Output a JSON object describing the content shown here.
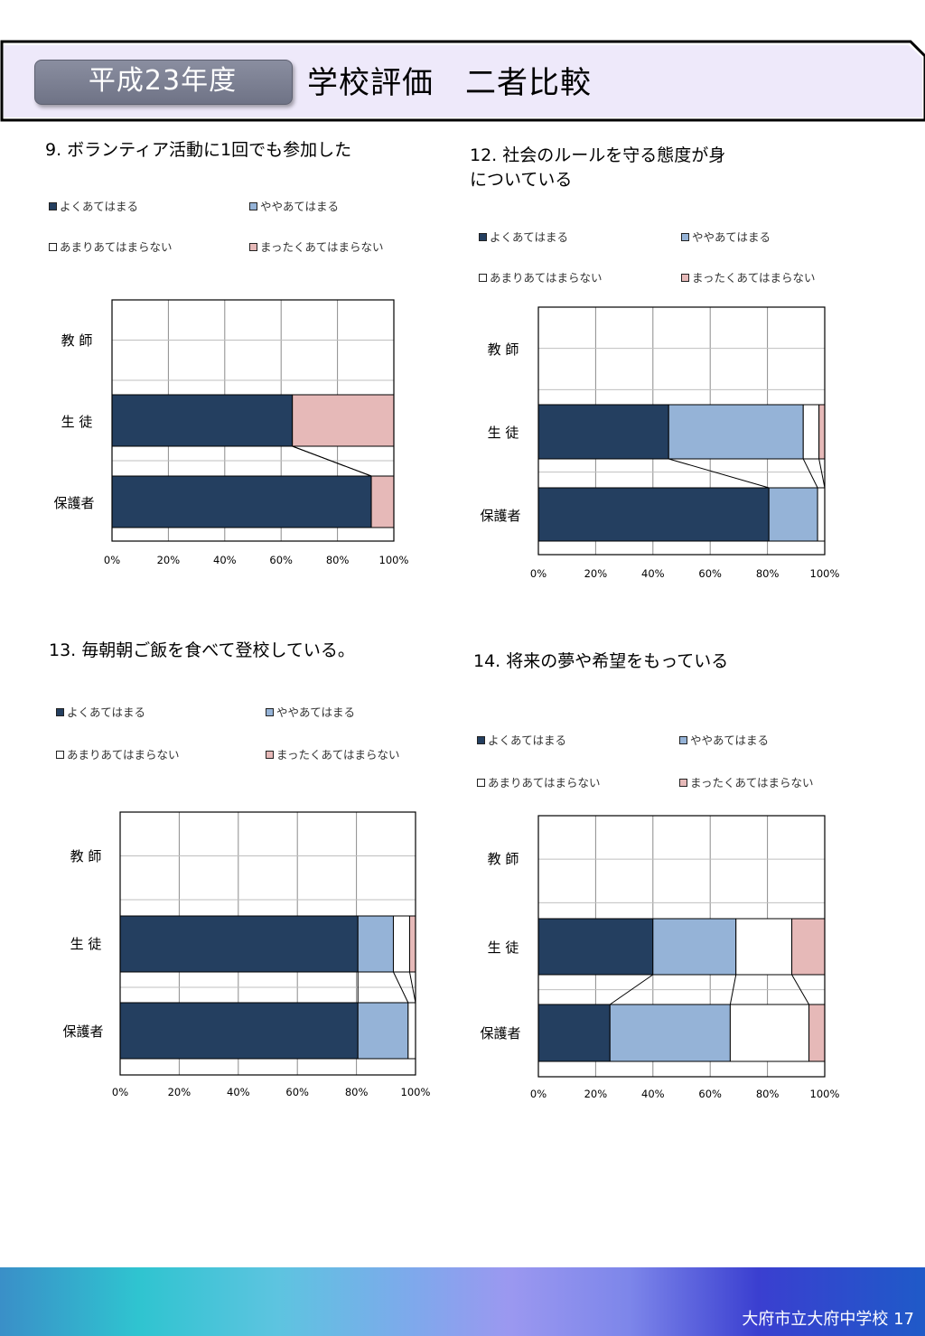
{
  "header": {
    "year": "平成23年度",
    "title": "学校評価　二者比較"
  },
  "footer": {
    "school": "大府市立大府中学校 17"
  },
  "categories": [
    "教 師",
    "生 徒",
    "保護者"
  ],
  "legend_labels": [
    "よくあてはまる",
    "ややあてはまる",
    "あまりあてはまらない",
    "まったくあてはまらない"
  ],
  "colors": {
    "navy": "#243F60",
    "lightblue": "#95B3D7",
    "white": "#FFFFFF",
    "pink": "#E6B9B8"
  },
  "chart_data": [
    {
      "type": "bar",
      "title": "9. ボランティア活動に1回でも参加した",
      "categories": [
        "教 師",
        "生 徒",
        "保護者"
      ],
      "xticks": [
        "0%",
        "20%",
        "40%",
        "60%",
        "80%",
        "100%"
      ],
      "xlim": [
        0,
        100
      ],
      "series": [
        {
          "name": "よくあてはまる",
          "values": [
            0,
            64,
            92
          ]
        },
        {
          "name": "ややあてはまる",
          "values": [
            0,
            0,
            0
          ]
        },
        {
          "name": "あまりあてはまらない",
          "values": [
            0,
            0,
            0
          ]
        },
        {
          "name": "まったくあてはまらない",
          "values": [
            0,
            36,
            8
          ]
        }
      ]
    },
    {
      "type": "bar",
      "title": "12. 社会のルールを守る態度が身\nについている",
      "categories": [
        "教 師",
        "生 徒",
        "保護者"
      ],
      "xticks": [
        "0%",
        "20%",
        "40%",
        "60%",
        "80%",
        "100%"
      ],
      "xlim": [
        0,
        100
      ],
      "series": [
        {
          "name": "よくあてはまる",
          "values": [
            0,
            45.5,
            80.5
          ]
        },
        {
          "name": "ややあてはまる",
          "values": [
            0,
            47,
            17
          ]
        },
        {
          "name": "あまりあてはまらない",
          "values": [
            0,
            5.5,
            2.5
          ]
        },
        {
          "name": "まったくあてはまらない",
          "values": [
            0,
            2,
            0
          ]
        }
      ]
    },
    {
      "type": "bar",
      "title": "13. 毎朝朝ご飯を食べて登校している。",
      "categories": [
        "教 師",
        "生 徒",
        "保護者"
      ],
      "xticks": [
        "0%",
        "20%",
        "40%",
        "60%",
        "80%",
        "100%"
      ],
      "xlim": [
        0,
        100
      ],
      "series": [
        {
          "name": "よくあてはまる",
          "values": [
            0,
            80.5,
            80.5
          ]
        },
        {
          "name": "ややあてはまる",
          "values": [
            0,
            12,
            17
          ]
        },
        {
          "name": "あまりあてはまらない",
          "values": [
            0,
            5.5,
            2.5
          ]
        },
        {
          "name": "まったくあてはまらない",
          "values": [
            0,
            2,
            0
          ]
        }
      ]
    },
    {
      "type": "bar",
      "title": "14. 将来の夢や希望をもっている",
      "categories": [
        "教 師",
        "生 徒",
        "保護者"
      ],
      "xticks": [
        "0%",
        "20%",
        "40%",
        "60%",
        "80%",
        "100%"
      ],
      "xlim": [
        0,
        100
      ],
      "series": [
        {
          "name": "よくあてはまる",
          "values": [
            0,
            40,
            25
          ]
        },
        {
          "name": "ややあてはまる",
          "values": [
            0,
            29,
            42
          ]
        },
        {
          "name": "あまりあてはまらない",
          "values": [
            0,
            19.5,
            27.5
          ]
        },
        {
          "name": "まったくあてはまらない",
          "values": [
            0,
            11.5,
            5.5
          ]
        }
      ]
    }
  ]
}
